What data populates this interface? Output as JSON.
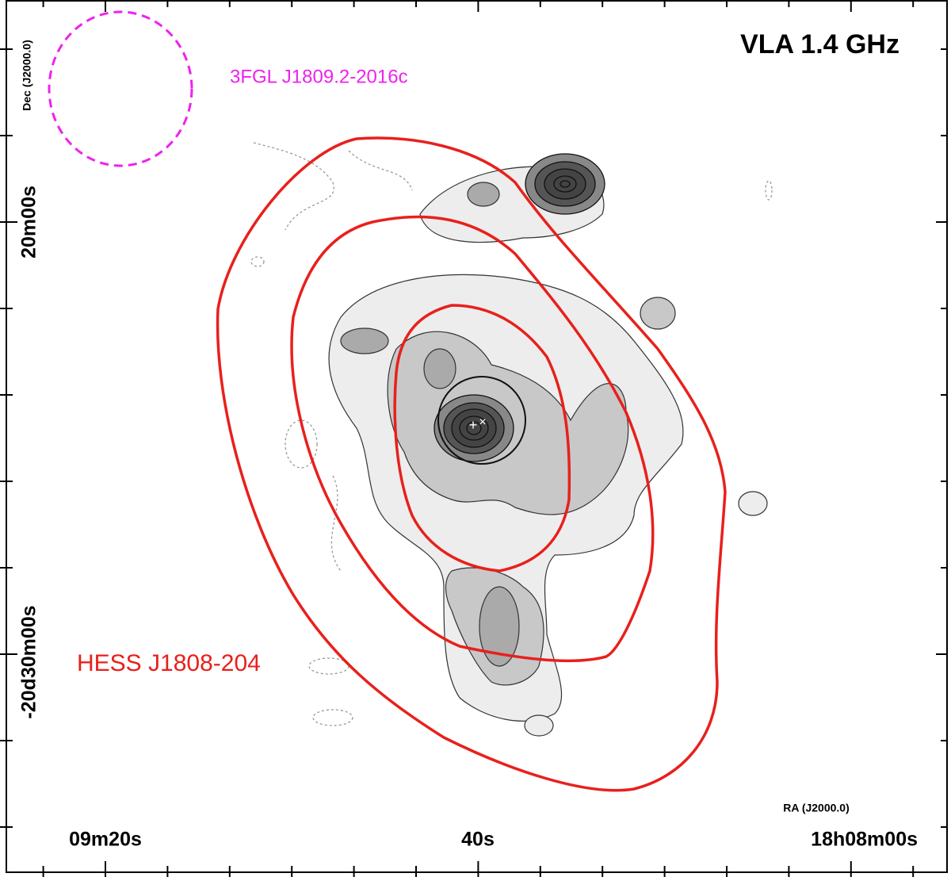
{
  "title": "VLA 1.4 GHz",
  "annotations": {
    "fermi_source": "3FGL J1809.2-2016c",
    "hess_source": "HESS J1808-204"
  },
  "axes": {
    "x_label": "RA (J2000.0)",
    "y_label": "Dec (J2000.0)",
    "x_ticks": [
      "09m20s",
      "40s",
      "18h08m00s"
    ],
    "y_ticks": [
      "20m00s",
      "-20d30m00s"
    ]
  }
}
